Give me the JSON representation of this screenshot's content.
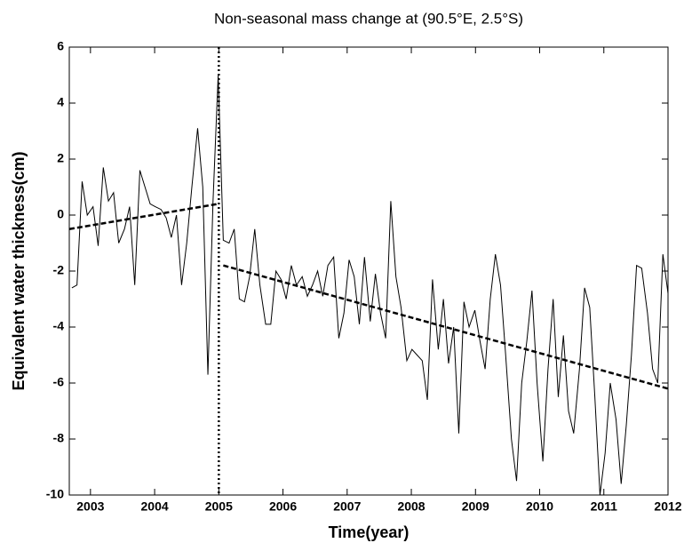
{
  "chart_data": {
    "type": "line",
    "title": "Non-seasonal mass change at (90.5°E, 2.5°S)",
    "x_label": "Time(year)",
    "y_label": "Equivalent water thickness(cm)",
    "xlim": [
      2002.67,
      2012.0
    ],
    "xticks": [
      2003,
      2004,
      2005,
      2006,
      2007,
      2008,
      2009,
      2010,
      2011,
      2012
    ],
    "ylim": [
      -10,
      6
    ],
    "yticks": [
      -10,
      -8,
      -6,
      -4,
      -2,
      0,
      2,
      4,
      6
    ],
    "vline_x": 2005,
    "series": [
      {
        "color": "#000000",
        "dash": false,
        "x": [
          2002.71,
          2002.79,
          2002.87,
          2002.95,
          2003.04,
          2003.12,
          2003.2,
          2003.28,
          2003.36,
          2003.44,
          2003.53,
          2003.61,
          2003.69,
          2003.77,
          2003.85,
          2003.93,
          2004.01,
          2004.1,
          2004.18,
          2004.26,
          2004.34,
          2004.42,
          2004.5,
          2004.58,
          2004.67,
          2004.75,
          2004.83,
          2004.91,
          2004.99,
          2005.07,
          2005.16,
          2005.24,
          2005.32,
          2005.4,
          2005.48,
          2005.56,
          2005.64,
          2005.73,
          2005.81,
          2005.89,
          2005.97,
          2006.05,
          2006.13,
          2006.21,
          2006.3,
          2006.38,
          2006.46,
          2006.54,
          2006.62,
          2006.7,
          2006.79,
          2006.87,
          2006.95,
          2007.03,
          2007.11,
          2007.19,
          2007.27,
          2007.36,
          2007.44,
          2007.52,
          2007.6,
          2007.68,
          2007.76,
          2007.84,
          2007.93,
          2008.01,
          2008.09,
          2008.17,
          2008.25,
          2008.33,
          2008.42,
          2008.5,
          2008.58,
          2008.66,
          2008.74,
          2008.82,
          2008.9,
          2008.99,
          2009.07,
          2009.15,
          2009.23,
          2009.31,
          2009.39,
          2009.47,
          2009.56,
          2009.64,
          2009.72,
          2009.8,
          2009.88,
          2009.96,
          2010.05,
          2010.13,
          2010.21,
          2010.29,
          2010.37,
          2010.45,
          2010.53,
          2010.62,
          2010.7,
          2010.78,
          2010.86,
          2010.94,
          2011.02,
          2011.1,
          2011.19,
          2011.27,
          2011.35,
          2011.43,
          2011.51,
          2011.59,
          2011.68,
          2011.76,
          2011.84,
          2011.92,
          2012.0
        ],
        "values": [
          -2.6,
          -2.5,
          1.2,
          0.0,
          0.3,
          -1.1,
          1.7,
          0.5,
          0.8,
          -1.0,
          -0.5,
          0.3,
          -2.5,
          1.6,
          1.0,
          0.4,
          0.3,
          0.2,
          -0.1,
          -0.8,
          0.0,
          -2.5,
          -1.0,
          1.0,
          3.1,
          1.0,
          -5.7,
          0.5,
          5.0,
          -0.9,
          -1.0,
          -0.5,
          -3.0,
          -3.1,
          -2.2,
          -0.5,
          -2.5,
          -3.9,
          -3.9,
          -2.0,
          -2.3,
          -3.0,
          -1.8,
          -2.5,
          -2.2,
          -2.9,
          -2.5,
          -2.0,
          -2.9,
          -1.8,
          -1.5,
          -4.4,
          -3.5,
          -1.6,
          -2.2,
          -3.9,
          -1.5,
          -3.8,
          -2.1,
          -3.5,
          -4.4,
          0.5,
          -2.2,
          -3.3,
          -5.2,
          -4.8,
          -5.0,
          -5.2,
          -6.6,
          -2.3,
          -4.8,
          -3.0,
          -5.3,
          -4.0,
          -7.8,
          -3.1,
          -4.0,
          -3.4,
          -4.5,
          -5.5,
          -3.0,
          -1.4,
          -2.5,
          -5.0,
          -8.0,
          -9.5,
          -6.0,
          -4.5,
          -2.7,
          -6.0,
          -8.8,
          -5.5,
          -3.0,
          -6.5,
          -4.3,
          -7.0,
          -7.8,
          -5.5,
          -2.6,
          -3.3,
          -6.5,
          -10.0,
          -8.5,
          -6.0,
          -7.3,
          -9.6,
          -7.5,
          -5.0,
          -1.8,
          -1.9,
          -3.5,
          -5.5,
          -6.0,
          -1.4,
          -2.8
        ]
      },
      {
        "color": "#000000",
        "dash": true,
        "x": [
          2002.67,
          2004.99
        ],
        "values": [
          -0.5,
          0.4
        ]
      },
      {
        "color": "#000000",
        "dash": true,
        "x": [
          2005.07,
          2012.0
        ],
        "values": [
          -1.8,
          -6.2
        ]
      }
    ]
  }
}
